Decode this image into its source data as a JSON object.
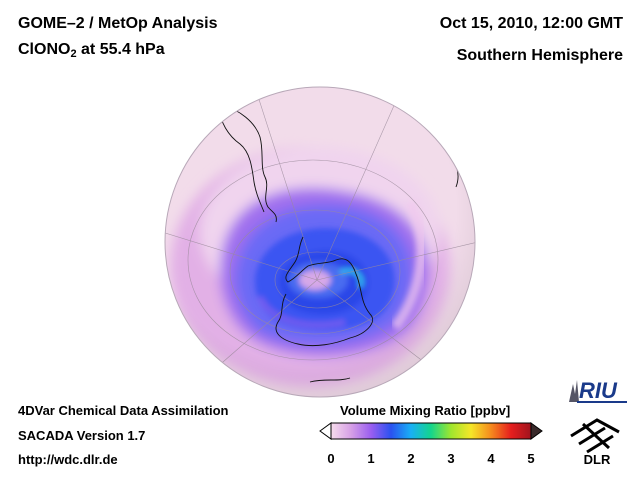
{
  "header": {
    "title_line1": "GOME–2 / MetOp Analysis",
    "species_prefix": "ClONO",
    "species_sub": "2",
    "species_suffix": " at 55.4 hPa",
    "datetime": "Oct 15, 2010, 12:00 GMT",
    "region": "Southern Hemisphere"
  },
  "footer": {
    "line1": "4DVar Chemical Data Assimilation",
    "line2": "SACADA Version 1.7",
    "line3": "http://wdc.dlr.de"
  },
  "colorbar": {
    "title": "Volume Mixing Ratio [ppbv]",
    "ticks": [
      "0",
      "1",
      "2",
      "3",
      "4",
      "5"
    ],
    "colors": [
      "#f6dcec",
      "#d6a0e6",
      "#9a5ef0",
      "#2a52f0",
      "#19b0f5",
      "#14d58c",
      "#a0e62e",
      "#f5e628",
      "#f58a1e",
      "#e61e1e",
      "#a0141e"
    ]
  },
  "logos": {
    "riu": "RIU",
    "dlr": "DLR"
  },
  "map": {
    "projection": "orthographic, south polar view",
    "value_range_ppbv": [
      0,
      5
    ]
  }
}
